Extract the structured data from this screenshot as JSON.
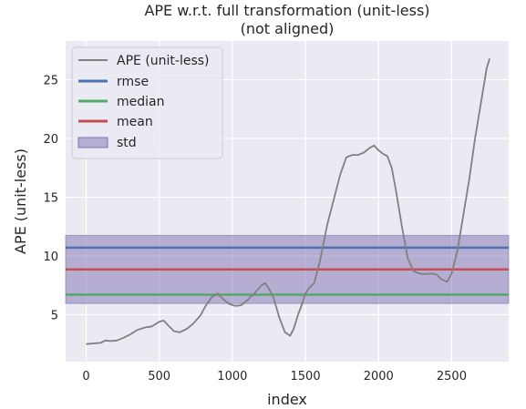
{
  "chart_data": {
    "type": "line",
    "title": "APE w.r.t. full transformation (unit-less)",
    "subtitle": "(not aligned)",
    "xlabel": "index",
    "ylabel": "APE (unit-less)",
    "xlim": [
      -140,
      2890
    ],
    "ylim": [
      1.0,
      28.3
    ],
    "xticks": [
      0,
      500,
      1000,
      1500,
      2000,
      2500
    ],
    "yticks": [
      5,
      10,
      15,
      20,
      25
    ],
    "grid": true,
    "legend_position": "top-left",
    "series": [
      {
        "name": "APE (unit-less)",
        "color": "#808080",
        "x": [
          0,
          50,
          100,
          130,
          170,
          210,
          250,
          300,
          350,
          400,
          450,
          500,
          530,
          560,
          600,
          640,
          690,
          730,
          780,
          820,
          860,
          900,
          940,
          980,
          1020,
          1060,
          1100,
          1150,
          1200,
          1225,
          1250,
          1280,
          1320,
          1360,
          1395,
          1420,
          1450,
          1480,
          1500,
          1520,
          1560,
          1600,
          1650,
          1700,
          1740,
          1780,
          1820,
          1860,
          1900,
          1940,
          1970,
          2000,
          2030,
          2060,
          2090,
          2120,
          2160,
          2200,
          2240,
          2280,
          2320,
          2360,
          2400,
          2430,
          2470,
          2500,
          2540,
          2580,
          2620,
          2660,
          2700,
          2740,
          2760
        ],
        "y": [
          2.5,
          2.55,
          2.6,
          2.8,
          2.75,
          2.8,
          3.0,
          3.3,
          3.7,
          3.9,
          4.0,
          4.4,
          4.5,
          4.1,
          3.6,
          3.5,
          3.8,
          4.2,
          4.9,
          5.8,
          6.5,
          6.8,
          6.3,
          5.9,
          5.75,
          5.8,
          6.2,
          6.8,
          7.5,
          7.7,
          7.2,
          6.5,
          4.8,
          3.5,
          3.2,
          3.8,
          5.0,
          6.0,
          6.8,
          7.2,
          7.7,
          9.6,
          12.7,
          15.1,
          17.0,
          18.4,
          18.6,
          18.6,
          18.8,
          19.2,
          19.4,
          19.0,
          18.7,
          18.5,
          17.5,
          15.5,
          12.5,
          9.8,
          8.7,
          8.5,
          8.45,
          8.5,
          8.4,
          8.0,
          7.8,
          8.5,
          10.5,
          13.5,
          16.5,
          20.0,
          23.0,
          26.0,
          26.8
        ]
      },
      {
        "name": "rmse",
        "color": "#4c72b0",
        "value": 10.7
      },
      {
        "name": "median",
        "color": "#55a868",
        "value": 6.7
      },
      {
        "name": "mean",
        "color": "#c44e52",
        "value": 8.85
      },
      {
        "name": "std",
        "color": "#8172b2",
        "range": [
          5.95,
          11.75
        ]
      }
    ]
  }
}
